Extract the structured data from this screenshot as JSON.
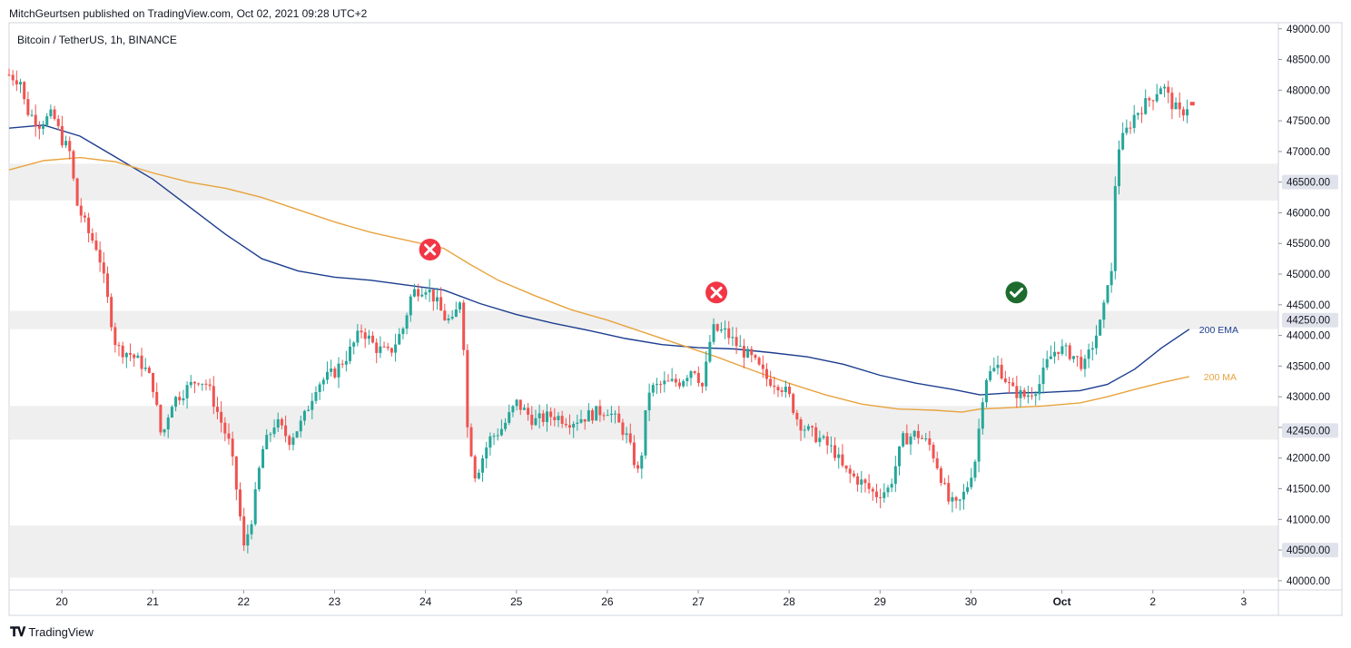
{
  "header": {
    "publisher": "MitchGeurtsen published on TradingView.com, Oct 02, 2021 09:28 UTC+2"
  },
  "chart_title": "Bitcoin / TetherUS, 1h, BINANCE",
  "brand": {
    "name": "TradingView",
    "icon": "tradingview-logo-icon"
  },
  "colors": {
    "up": "#26a69a",
    "down": "#ef5350",
    "ema": "#1c3d8f",
    "ma": "#e8a33d",
    "zone": "#efefef",
    "cross": "#f23645",
    "check": "#1e6b2d"
  },
  "chart_data": {
    "type": "candlestick",
    "ylim": [
      39850,
      49100
    ],
    "y_ticks": [
      40000,
      40500,
      41000,
      41500,
      42000,
      42500,
      43000,
      43500,
      44000,
      44500,
      45000,
      45500,
      46000,
      46500,
      47000,
      47500,
      48000,
      48500,
      49000
    ],
    "y_tick_labels": [
      "40000.00",
      "40500.00",
      "41000.00",
      "41500.00",
      "42000.00",
      "42500.00",
      "43000.00",
      "43500.00",
      "44000.00",
      "44500.00",
      "45000.00",
      "45500.00",
      "46000.00",
      "46500.00",
      "47000.00",
      "47500.00",
      "48000.00",
      "48500.00",
      "49000.00"
    ],
    "x_tick_labels": [
      "20",
      "21",
      "22",
      "23",
      "24",
      "25",
      "26",
      "27",
      "28",
      "29",
      "30",
      "Oct",
      "2",
      "3"
    ],
    "x_tick_days": [
      20,
      21,
      22,
      23,
      24,
      25,
      26,
      27,
      28,
      29,
      30,
      31,
      32,
      33
    ],
    "x_range_days": [
      19.42,
      34.08
    ],
    "price_labels": [
      {
        "text": "46500.00",
        "value": 46500
      },
      {
        "text": "44250.00",
        "value": 44250
      },
      {
        "text": "42450.00",
        "value": 42450
      },
      {
        "text": "40500.00",
        "value": 40500
      }
    ],
    "zones": [
      {
        "from": 46200,
        "to": 46800
      },
      {
        "from": 44100,
        "to": 44400
      },
      {
        "from": 42300,
        "to": 42850
      },
      {
        "from": 40050,
        "to": 40900
      }
    ],
    "close_path": [
      [
        19.42,
        48250
      ],
      [
        19.55,
        48150
      ],
      [
        19.6,
        47700
      ],
      [
        19.75,
        47450
      ],
      [
        19.9,
        47600
      ],
      [
        20.0,
        47200
      ],
      [
        20.1,
        46950
      ],
      [
        20.15,
        46200
      ],
      [
        20.3,
        45650
      ],
      [
        20.4,
        45400
      ],
      [
        20.5,
        44600
      ],
      [
        20.6,
        43800
      ],
      [
        20.75,
        43700
      ],
      [
        20.9,
        43500
      ],
      [
        21.0,
        43200
      ],
      [
        21.1,
        42300
      ],
      [
        21.2,
        42900
      ],
      [
        21.35,
        43100
      ],
      [
        21.5,
        43300
      ],
      [
        21.6,
        43200
      ],
      [
        21.75,
        42600
      ],
      [
        21.85,
        42200
      ],
      [
        21.95,
        41200
      ],
      [
        22.0,
        40500
      ],
      [
        22.1,
        41100
      ],
      [
        22.2,
        42100
      ],
      [
        22.35,
        42600
      ],
      [
        22.5,
        42300
      ],
      [
        22.65,
        42600
      ],
      [
        22.8,
        43200
      ],
      [
        23.0,
        43400
      ],
      [
        23.15,
        43700
      ],
      [
        23.3,
        44100
      ],
      [
        23.45,
        43800
      ],
      [
        23.6,
        43700
      ],
      [
        23.75,
        44100
      ],
      [
        23.85,
        44700
      ],
      [
        24.0,
        44800
      ],
      [
        24.1,
        44600
      ],
      [
        24.2,
        44300
      ],
      [
        24.3,
        44200
      ],
      [
        24.4,
        44700
      ],
      [
        24.45,
        42600
      ],
      [
        24.55,
        41700
      ],
      [
        24.7,
        42300
      ],
      [
        24.85,
        42500
      ],
      [
        25.0,
        42900
      ],
      [
        25.2,
        42600
      ],
      [
        25.4,
        42700
      ],
      [
        25.6,
        42600
      ],
      [
        25.8,
        42700
      ],
      [
        26.0,
        42800
      ],
      [
        26.2,
        42400
      ],
      [
        26.35,
        41700
      ],
      [
        26.45,
        43100
      ],
      [
        26.6,
        43200
      ],
      [
        26.8,
        43250
      ],
      [
        26.95,
        43500
      ],
      [
        27.05,
        43150
      ],
      [
        27.15,
        44100
      ],
      [
        27.3,
        44050
      ],
      [
        27.45,
        43800
      ],
      [
        27.6,
        43600
      ],
      [
        27.75,
        43300
      ],
      [
        27.9,
        43200
      ],
      [
        28.0,
        43000
      ],
      [
        28.1,
        42600
      ],
      [
        28.2,
        42450
      ],
      [
        28.35,
        42300
      ],
      [
        28.5,
        42100
      ],
      [
        28.6,
        41800
      ],
      [
        28.8,
        41600
      ],
      [
        28.95,
        41400
      ],
      [
        29.1,
        41500
      ],
      [
        29.25,
        42300
      ],
      [
        29.4,
        42400
      ],
      [
        29.55,
        42200
      ],
      [
        29.65,
        41800
      ],
      [
        29.75,
        41300
      ],
      [
        29.85,
        41200
      ],
      [
        29.95,
        41500
      ],
      [
        30.05,
        42000
      ],
      [
        30.15,
        43300
      ],
      [
        30.3,
        43500
      ],
      [
        30.45,
        43100
      ],
      [
        30.6,
        43000
      ],
      [
        30.75,
        43200
      ],
      [
        30.85,
        43600
      ],
      [
        30.95,
        43800
      ],
      [
        31.1,
        43700
      ],
      [
        31.25,
        43500
      ],
      [
        31.35,
        43900
      ],
      [
        31.45,
        44300
      ],
      [
        31.5,
        44900
      ],
      [
        31.55,
        45000
      ],
      [
        31.6,
        47000
      ],
      [
        31.7,
        47300
      ],
      [
        31.8,
        47600
      ],
      [
        32.0,
        47900
      ],
      [
        32.1,
        48100
      ],
      [
        32.2,
        47800
      ],
      [
        32.3,
        47600
      ],
      [
        32.4,
        47780
      ]
    ],
    "series": [
      {
        "name": "200 EMA",
        "color": "#1c3d8f",
        "points": [
          [
            19.42,
            47380
          ],
          [
            19.8,
            47430
          ],
          [
            20.2,
            47250
          ],
          [
            20.6,
            46900
          ],
          [
            21.0,
            46550
          ],
          [
            21.4,
            46100
          ],
          [
            21.8,
            45650
          ],
          [
            22.2,
            45250
          ],
          [
            22.6,
            45050
          ],
          [
            23.0,
            44950
          ],
          [
            23.4,
            44900
          ],
          [
            23.8,
            44820
          ],
          [
            24.2,
            44740
          ],
          [
            24.6,
            44520
          ],
          [
            25.0,
            44340
          ],
          [
            25.4,
            44200
          ],
          [
            25.8,
            44080
          ],
          [
            26.2,
            43950
          ],
          [
            26.6,
            43850
          ],
          [
            27.0,
            43800
          ],
          [
            27.4,
            43780
          ],
          [
            27.8,
            43720
          ],
          [
            28.2,
            43650
          ],
          [
            28.6,
            43530
          ],
          [
            29.0,
            43350
          ],
          [
            29.4,
            43220
          ],
          [
            29.8,
            43120
          ],
          [
            30.1,
            43030
          ],
          [
            30.4,
            43060
          ],
          [
            30.8,
            43070
          ],
          [
            31.2,
            43100
          ],
          [
            31.5,
            43200
          ],
          [
            31.8,
            43450
          ],
          [
            32.1,
            43800
          ],
          [
            32.4,
            44100
          ]
        ]
      },
      {
        "name": "200 MA",
        "color": "#e8a33d",
        "points": [
          [
            19.42,
            46700
          ],
          [
            19.8,
            46850
          ],
          [
            20.2,
            46900
          ],
          [
            20.6,
            46830
          ],
          [
            21.0,
            46650
          ],
          [
            21.4,
            46500
          ],
          [
            21.8,
            46400
          ],
          [
            22.2,
            46250
          ],
          [
            22.6,
            46050
          ],
          [
            23.0,
            45850
          ],
          [
            23.4,
            45680
          ],
          [
            23.8,
            45550
          ],
          [
            24.2,
            45420
          ],
          [
            24.5,
            45150
          ],
          [
            24.8,
            44900
          ],
          [
            25.2,
            44650
          ],
          [
            25.6,
            44420
          ],
          [
            26.0,
            44250
          ],
          [
            26.4,
            44050
          ],
          [
            26.8,
            43850
          ],
          [
            27.2,
            43650
          ],
          [
            27.6,
            43430
          ],
          [
            28.0,
            43220
          ],
          [
            28.4,
            43030
          ],
          [
            28.8,
            42880
          ],
          [
            29.2,
            42800
          ],
          [
            29.6,
            42780
          ],
          [
            29.9,
            42750
          ],
          [
            30.1,
            42800
          ],
          [
            30.4,
            42820
          ],
          [
            30.8,
            42850
          ],
          [
            31.2,
            42900
          ],
          [
            31.5,
            43000
          ],
          [
            31.8,
            43120
          ],
          [
            32.1,
            43230
          ],
          [
            32.4,
            43330
          ]
        ]
      }
    ],
    "markers": [
      {
        "type": "cross",
        "day": 24.05,
        "price": 45400,
        "name": "rejection-marker-1"
      },
      {
        "type": "cross",
        "day": 27.2,
        "price": 44700,
        "name": "rejection-marker-2"
      },
      {
        "type": "check",
        "day": 30.5,
        "price": 44700,
        "name": "breakout-marker"
      }
    ],
    "series_labels": [
      {
        "text": "200 EMA",
        "day": 32.45,
        "price": 44100,
        "color": "#1c3d8f"
      },
      {
        "text": "200 MA",
        "day": 32.5,
        "price": 43330,
        "color": "#e8a33d"
      }
    ],
    "last_price": 47780
  }
}
